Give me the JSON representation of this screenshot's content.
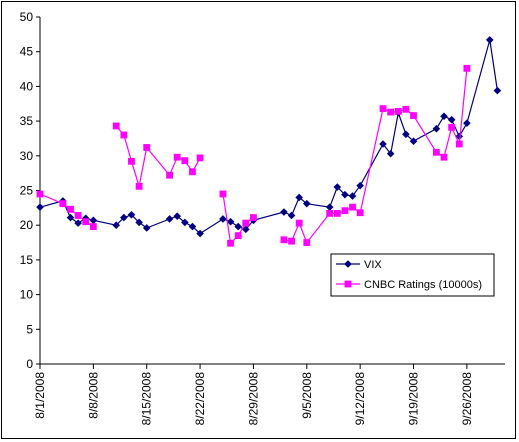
{
  "chart_data": {
    "type": "line",
    "title": "",
    "xlabel": "",
    "ylabel": "",
    "ylim": [
      0,
      50
    ],
    "yticks": [
      0,
      5,
      10,
      15,
      20,
      25,
      30,
      35,
      40,
      45,
      50
    ],
    "xlim": [
      "2008-08-01",
      "2008-10-01"
    ],
    "xticks": [
      "8/1/2008",
      "8/8/2008",
      "8/15/2008",
      "8/22/2008",
      "8/29/2008",
      "9/5/2008",
      "9/12/2008",
      "9/19/2008",
      "9/26/2008"
    ],
    "grid": false,
    "legend_placement": "lower-right",
    "series": [
      {
        "name": "VIX",
        "color": "#000080",
        "marker": "diamond",
        "points": [
          [
            "2008-08-01",
            22.6
          ],
          [
            "2008-08-04",
            23.5
          ],
          [
            "2008-08-05",
            21.1
          ],
          [
            "2008-08-06",
            20.3
          ],
          [
            "2008-08-07",
            21.0
          ],
          [
            "2008-08-08",
            20.7
          ],
          [
            "2008-08-11",
            20.0
          ],
          [
            "2008-08-12",
            21.1
          ],
          [
            "2008-08-13",
            21.5
          ],
          [
            "2008-08-14",
            20.4
          ],
          [
            "2008-08-15",
            19.6
          ],
          [
            "2008-08-18",
            20.9
          ],
          [
            "2008-08-19",
            21.3
          ],
          [
            "2008-08-20",
            20.4
          ],
          [
            "2008-08-21",
            19.8
          ],
          [
            "2008-08-22",
            18.8
          ],
          [
            "2008-08-25",
            20.9
          ],
          [
            "2008-08-26",
            20.5
          ],
          [
            "2008-08-27",
            19.8
          ],
          [
            "2008-08-28",
            19.4
          ],
          [
            "2008-08-29",
            20.7
          ],
          [
            "2008-09-02",
            21.9
          ],
          [
            "2008-09-03",
            21.4
          ],
          [
            "2008-09-04",
            24.0
          ],
          [
            "2008-09-05",
            23.1
          ],
          [
            "2008-09-08",
            22.6
          ],
          [
            "2008-09-09",
            25.5
          ],
          [
            "2008-09-10",
            24.4
          ],
          [
            "2008-09-11",
            24.2
          ],
          [
            "2008-09-12",
            25.7
          ],
          [
            "2008-09-15",
            31.7
          ],
          [
            "2008-09-16",
            30.3
          ],
          [
            "2008-09-17",
            36.2
          ],
          [
            "2008-09-18",
            33.1
          ],
          [
            "2008-09-19",
            32.1
          ],
          [
            "2008-09-22",
            33.9
          ],
          [
            "2008-09-23",
            35.7
          ],
          [
            "2008-09-24",
            35.2
          ],
          [
            "2008-09-25",
            32.8
          ],
          [
            "2008-09-26",
            34.7
          ],
          [
            "2008-09-29",
            46.7
          ],
          [
            "2008-09-30",
            39.4
          ]
        ]
      },
      {
        "name": "CNBC Ratings (10000s)",
        "color": "#FF00FF",
        "marker": "square",
        "segments": [
          [
            [
              "2008-08-01",
              24.5
            ],
            [
              "2008-08-04",
              23.1
            ],
            [
              "2008-08-05",
              22.3
            ],
            [
              "2008-08-06",
              21.4
            ],
            [
              "2008-08-07",
              20.5
            ],
            [
              "2008-08-08",
              19.8
            ]
          ],
          [
            [
              "2008-08-11",
              34.3
            ],
            [
              "2008-08-12",
              33.0
            ],
            [
              "2008-08-13",
              29.2
            ],
            [
              "2008-08-14",
              25.6
            ],
            [
              "2008-08-15",
              31.2
            ],
            [
              "2008-08-18",
              27.2
            ],
            [
              "2008-08-19",
              29.8
            ],
            [
              "2008-08-20",
              29.3
            ],
            [
              "2008-08-21",
              27.7
            ],
            [
              "2008-08-22",
              29.7
            ]
          ],
          [
            [
              "2008-08-25",
              24.5
            ],
            [
              "2008-08-26",
              17.4
            ],
            [
              "2008-08-27",
              18.5
            ],
            [
              "2008-08-28",
              20.3
            ],
            [
              "2008-08-29",
              21.1
            ]
          ],
          [
            [
              "2008-09-02",
              17.9
            ],
            [
              "2008-09-03",
              17.7
            ],
            [
              "2008-09-04",
              20.3
            ],
            [
              "2008-09-05",
              17.5
            ],
            [
              "2008-09-08",
              21.7
            ],
            [
              "2008-09-09",
              21.7
            ],
            [
              "2008-09-10",
              22.1
            ],
            [
              "2008-09-11",
              22.6
            ],
            [
              "2008-09-12",
              21.8
            ],
            [
              "2008-09-15",
              36.8
            ],
            [
              "2008-09-16",
              36.3
            ],
            [
              "2008-09-17",
              36.4
            ],
            [
              "2008-09-18",
              36.7
            ],
            [
              "2008-09-19",
              35.8
            ],
            [
              "2008-09-22",
              30.5
            ],
            [
              "2008-09-23",
              29.8
            ],
            [
              "2008-09-24",
              34.1
            ],
            [
              "2008-09-25",
              31.7
            ],
            [
              "2008-09-26",
              42.6
            ]
          ]
        ]
      }
    ]
  }
}
